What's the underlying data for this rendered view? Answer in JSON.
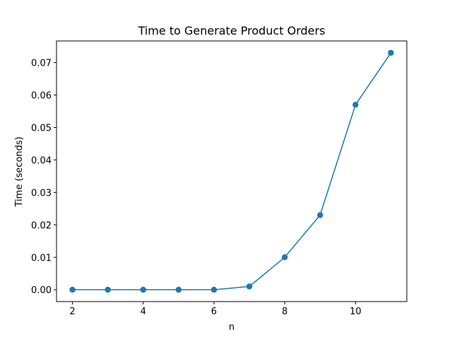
{
  "chart_data": {
    "type": "line",
    "title": "Time to Generate Product Orders",
    "xlabel": "n",
    "ylabel": "Time (seconds)",
    "x": [
      2,
      3,
      4,
      5,
      6,
      7,
      8,
      9,
      10,
      11
    ],
    "series": [
      {
        "values": [
          0.0,
          0.0,
          0.0,
          0.0,
          0.0,
          0.001,
          0.01,
          0.023,
          0.057,
          0.073
        ],
        "color": "#1f77b4",
        "marker": "circle"
      }
    ],
    "xlim": [
      1.55,
      11.45
    ],
    "ylim": [
      -0.00365,
      0.07665
    ],
    "xticks": [
      2,
      4,
      6,
      8,
      10
    ],
    "xtick_labels": [
      "2",
      "4",
      "6",
      "8",
      "10"
    ],
    "yticks": [
      0.0,
      0.01,
      0.02,
      0.03,
      0.04,
      0.05,
      0.06,
      0.07
    ],
    "ytick_labels": [
      "0.00",
      "0.01",
      "0.02",
      "0.03",
      "0.04",
      "0.05",
      "0.06",
      "0.07"
    ],
    "grid": false
  }
}
